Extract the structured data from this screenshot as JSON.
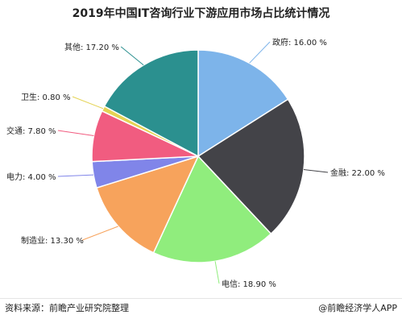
{
  "chart_data": {
    "type": "pie",
    "title": "2019年中国IT咨询行业下游应用市场占比统计情况",
    "unit": "%",
    "slices": [
      {
        "label": "政府",
        "value": 16.0,
        "display": "政府: 16.00 %",
        "color": "#7db4ea"
      },
      {
        "label": "金融",
        "value": 22.0,
        "display": "金融: 22.00 %",
        "color": "#434348"
      },
      {
        "label": "电信",
        "value": 18.9,
        "display": "电信: 18.90 %",
        "color": "#90ed7d"
      },
      {
        "label": "制造业",
        "value": 13.3,
        "display": "制造业: 13.30 %",
        "color": "#f7a35c"
      },
      {
        "label": "电力",
        "value": 4.0,
        "display": "电力: 4.00 %",
        "color": "#8085e9"
      },
      {
        "label": "交通",
        "value": 7.8,
        "display": "交通: 7.80 %",
        "color": "#f15c80"
      },
      {
        "label": "卫生",
        "value": 0.8,
        "display": "卫生: 0.80 %",
        "color": "#e4d354"
      },
      {
        "label": "其他",
        "value": 17.2,
        "display": "其他: 17.20 %",
        "color": "#2b908f"
      }
    ]
  },
  "footer": {
    "source": "资料来源：前瞻产业研究院整理",
    "brand": "@前瞻经济学人APP"
  }
}
